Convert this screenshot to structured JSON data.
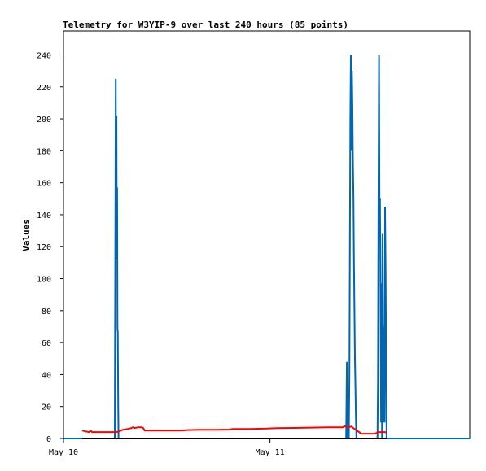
{
  "chart_data": {
    "type": "line",
    "title": "Telemetry for W3YIP-9 over last 240 hours (85 points)",
    "xlabel": "",
    "ylabel": "Values",
    "xlim_hours": [
      0,
      240
    ],
    "ylim": [
      0,
      255
    ],
    "y_ticks": [
      0,
      20,
      40,
      60,
      80,
      100,
      120,
      140,
      160,
      180,
      200,
      220,
      240
    ],
    "x_ticks": [
      {
        "label": "May 10",
        "hour": 0
      },
      {
        "label": "May 11",
        "hour": 122
      }
    ],
    "grid": false,
    "colors": {
      "series_blue": "#0066b3",
      "series_red": "#ff0000",
      "series_black": "#000000",
      "axes": "#000000"
    },
    "series": [
      {
        "color": "#0066b3",
        "points": [
          [
            0,
            0
          ],
          [
            30,
            0
          ],
          [
            30.3,
            0
          ],
          [
            30.6,
            112
          ],
          [
            30.9,
            225
          ],
          [
            31.1,
            112
          ],
          [
            31.3,
            202
          ],
          [
            31.5,
            112
          ],
          [
            31.7,
            157
          ],
          [
            31.9,
            68
          ],
          [
            32.1,
            67
          ],
          [
            32.3,
            22
          ],
          [
            32.5,
            0
          ],
          [
            167,
            0
          ],
          [
            167.4,
            48
          ],
          [
            167.7,
            0
          ],
          [
            168.6,
            0
          ],
          [
            168.9,
            40
          ],
          [
            169.2,
            120
          ],
          [
            169.5,
            200
          ],
          [
            169.8,
            240
          ],
          [
            170.1,
            180
          ],
          [
            170.4,
            230
          ],
          [
            170.7,
            210
          ],
          [
            171.0,
            175
          ],
          [
            171.3,
            150
          ],
          [
            171.6,
            110
          ],
          [
            171.9,
            80
          ],
          [
            172.2,
            50
          ],
          [
            172.5,
            30
          ],
          [
            172.8,
            10
          ],
          [
            173.1,
            0
          ],
          [
            185.5,
            0
          ],
          [
            185.8,
            35
          ],
          [
            186.1,
            145
          ],
          [
            186.4,
            240
          ],
          [
            186.7,
            140
          ],
          [
            187.0,
            150
          ],
          [
            187.3,
            90
          ],
          [
            187.6,
            10
          ],
          [
            187.9,
            97
          ],
          [
            188.2,
            0
          ],
          [
            188.5,
            128
          ],
          [
            188.8,
            65
          ],
          [
            189.1,
            10
          ],
          [
            189.4,
            70
          ],
          [
            189.7,
            10
          ],
          [
            190.0,
            145
          ],
          [
            190.3,
            104
          ],
          [
            190.6,
            48
          ],
          [
            190.9,
            0
          ],
          [
            240,
            0
          ]
        ]
      },
      {
        "color": "#ff0000",
        "points": [
          [
            11,
            5
          ],
          [
            13,
            4.5
          ],
          [
            15,
            4
          ],
          [
            16,
            4.8
          ],
          [
            17,
            4
          ],
          [
            20,
            4
          ],
          [
            23,
            4
          ],
          [
            27,
            4
          ],
          [
            31,
            4
          ],
          [
            33,
            4.5
          ],
          [
            35,
            5.5
          ],
          [
            38,
            6
          ],
          [
            40,
            6.5
          ],
          [
            41,
            7
          ],
          [
            42,
            6.5
          ],
          [
            44,
            7
          ],
          [
            46,
            7
          ],
          [
            47,
            6.6
          ],
          [
            48,
            5
          ],
          [
            52,
            5
          ],
          [
            60,
            5
          ],
          [
            70,
            5
          ],
          [
            73,
            5.3
          ],
          [
            80,
            5.5
          ],
          [
            90,
            5.5
          ],
          [
            98,
            5.6
          ],
          [
            100,
            6
          ],
          [
            110,
            6
          ],
          [
            120,
            6.2
          ],
          [
            126,
            6.5
          ],
          [
            136,
            6.6
          ],
          [
            146,
            6.8
          ],
          [
            156,
            7
          ],
          [
            165,
            7
          ],
          [
            166,
            7.7
          ],
          [
            168,
            7
          ],
          [
            170,
            7.5
          ],
          [
            172,
            6
          ],
          [
            174,
            4.5
          ],
          [
            176,
            3
          ],
          [
            180,
            3
          ],
          [
            184,
            3
          ],
          [
            186,
            4
          ],
          [
            190,
            4
          ],
          [
            191,
            3.5
          ]
        ]
      },
      {
        "color": "#000000",
        "points": [
          [
            11,
            0
          ],
          [
            191,
            0
          ]
        ]
      }
    ]
  }
}
